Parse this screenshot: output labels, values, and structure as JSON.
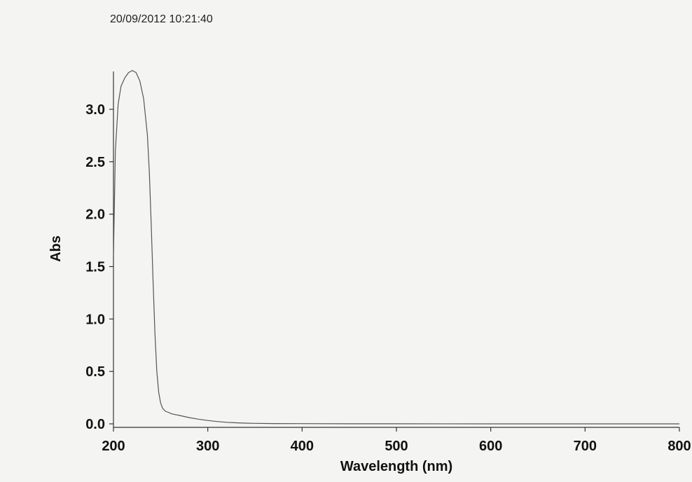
{
  "header": {
    "timestamp": "20/09/2012 10:21:40"
  },
  "chart_data": {
    "type": "line",
    "title": "",
    "xlabel": "Wavelength (nm)",
    "ylabel": "Abs",
    "xlim": [
      200,
      800
    ],
    "ylim": [
      0.0,
      3.35
    ],
    "x_ticks": [
      200,
      300,
      400,
      500,
      600,
      700,
      800
    ],
    "x_tick_labels": [
      "200",
      "300",
      "400",
      "500",
      "600",
      "700",
      "800"
    ],
    "y_ticks": [
      0.0,
      0.5,
      1.0,
      1.5,
      2.0,
      2.5,
      3.0
    ],
    "y_tick_labels": [
      "0.0",
      "0.5",
      "1.0",
      "1.5",
      "2.0",
      "2.5",
      "3.0"
    ],
    "grid": false,
    "legend": "none",
    "line_color": "#555555",
    "series": [
      {
        "x": [
          200,
          202,
          205,
          208,
          212,
          216,
          220,
          224,
          228,
          232,
          236,
          238,
          240,
          242,
          244,
          246,
          248,
          250,
          252,
          255,
          258,
          262,
          270,
          280,
          290,
          300,
          310,
          320,
          330,
          340,
          350,
          370,
          400,
          450,
          500,
          600,
          700,
          800
        ],
        "y": [
          1.6,
          2.6,
          3.05,
          3.22,
          3.3,
          3.35,
          3.37,
          3.35,
          3.27,
          3.1,
          2.75,
          2.4,
          1.9,
          1.35,
          0.85,
          0.5,
          0.3,
          0.2,
          0.15,
          0.12,
          0.11,
          0.095,
          0.08,
          0.06,
          0.045,
          0.032,
          0.022,
          0.015,
          0.01,
          0.007,
          0.005,
          0.003,
          0.002,
          0.001,
          0.001,
          0.0,
          0.0,
          0.0
        ]
      }
    ]
  }
}
